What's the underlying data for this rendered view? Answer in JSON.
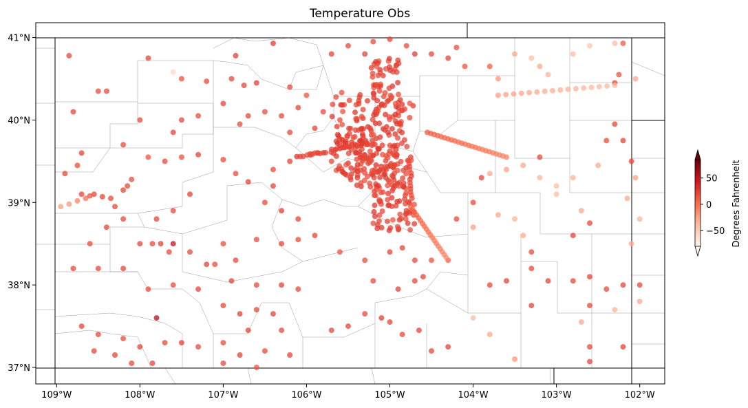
{
  "title": "Temperature Obs",
  "map": {
    "lon_range": [
      -109.25,
      -101.7
    ],
    "lat_range": [
      36.8,
      41.18
    ],
    "x_ticks": [
      {
        "value": -109,
        "label": "109°W"
      },
      {
        "value": -108,
        "label": "108°W"
      },
      {
        "value": -107,
        "label": "107°W"
      },
      {
        "value": -106,
        "label": "106°W"
      },
      {
        "value": -105,
        "label": "105°W"
      },
      {
        "value": -104,
        "label": "104°W"
      },
      {
        "value": -103,
        "label": "103°W"
      },
      {
        "value": -102,
        "label": "102°W"
      }
    ],
    "y_ticks": [
      {
        "value": 37,
        "label": "37°N"
      },
      {
        "value": 38,
        "label": "38°N"
      },
      {
        "value": 39,
        "label": "39°N"
      },
      {
        "value": 40,
        "label": "40°N"
      },
      {
        "value": 41,
        "label": "41°N"
      }
    ],
    "colorbar": {
      "label": "Degrees Fahrenheit",
      "min": -80,
      "max": 85,
      "ticks": [
        {
          "value": 50,
          "label": "50"
        },
        {
          "value": 0,
          "label": "0"
        },
        {
          "value": -50,
          "label": "−50"
        }
      ],
      "colormap": "Reds",
      "extend": "both"
    },
    "point_alpha": 0.75
  },
  "chart_data": {
    "type": "scatter",
    "title": "Temperature Obs",
    "xlabel": "",
    "ylabel": "",
    "color_label": "Degrees Fahrenheit",
    "points_columns": [
      "lon",
      "lat",
      "temp_F"
    ],
    "points": [
      [
        -108.85,
        40.78,
        20
      ],
      [
        -107.9,
        40.75,
        22
      ],
      [
        -107.6,
        40.58,
        -60
      ],
      [
        -107.5,
        40.5,
        15
      ],
      [
        -107.2,
        40.47,
        18
      ],
      [
        -106.85,
        40.78,
        25
      ],
      [
        -106.9,
        40.5,
        20
      ],
      [
        -106.75,
        40.42,
        22
      ],
      [
        -106.6,
        40.45,
        24
      ],
      [
        -106.4,
        40.93,
        25
      ],
      [
        -106.2,
        40.4,
        20
      ],
      [
        -106.0,
        40.3,
        15
      ],
      [
        -105.7,
        40.8,
        22
      ],
      [
        -105.5,
        40.9,
        20
      ],
      [
        -105.3,
        40.8,
        25
      ],
      [
        -105.2,
        40.95,
        20
      ],
      [
        -105.0,
        40.98,
        22
      ],
      [
        -104.8,
        40.9,
        20
      ],
      [
        -104.7,
        40.8,
        25
      ],
      [
        -104.5,
        40.8,
        20
      ],
      [
        -104.3,
        40.75,
        22
      ],
      [
        -104.1,
        40.65,
        15
      ],
      [
        -104.2,
        40.88,
        18
      ],
      [
        -103.8,
        40.65,
        10
      ],
      [
        -103.7,
        40.5,
        -20
      ],
      [
        -103.5,
        40.8,
        -30
      ],
      [
        -103.3,
        40.75,
        -40
      ],
      [
        -103.2,
        40.65,
        -30
      ],
      [
        -103.1,
        40.55,
        -35
      ],
      [
        -102.8,
        40.8,
        -40
      ],
      [
        -102.6,
        40.9,
        -45
      ],
      [
        -102.3,
        40.93,
        -40
      ],
      [
        -102.2,
        40.93,
        10
      ],
      [
        -102.25,
        40.55,
        15
      ],
      [
        -102.3,
        40.45,
        20
      ],
      [
        -102.05,
        40.5,
        -30
      ],
      [
        -108.5,
        40.35,
        18
      ],
      [
        -108.4,
        40.35,
        20
      ],
      [
        -108.8,
        40.1,
        22
      ],
      [
        -108.0,
        40.0,
        18
      ],
      [
        -107.5,
        40.0,
        20
      ],
      [
        -107.3,
        40.05,
        18
      ],
      [
        -107.0,
        40.2,
        22
      ],
      [
        -106.7,
        40.05,
        20
      ],
      [
        -106.5,
        40.1,
        18
      ],
      [
        -106.3,
        40.05,
        20
      ],
      [
        -106.1,
        40.15,
        22
      ],
      [
        -105.8,
        40.1,
        20
      ],
      [
        -105.6,
        40.0,
        18
      ],
      [
        -105.9,
        39.9,
        22
      ],
      [
        -106.2,
        39.85,
        20
      ],
      [
        -106.8,
        39.95,
        18
      ],
      [
        -107.6,
        39.85,
        22
      ],
      [
        -108.2,
        39.7,
        20
      ],
      [
        -108.7,
        39.6,
        22
      ],
      [
        -108.9,
        39.35,
        20
      ],
      [
        -108.75,
        39.45,
        18
      ],
      [
        -107.9,
        39.55,
        15
      ],
      [
        -107.7,
        39.5,
        20
      ],
      [
        -107.5,
        39.55,
        18
      ],
      [
        -107.3,
        39.58,
        22
      ],
      [
        -107.0,
        39.52,
        20
      ],
      [
        -106.85,
        39.35,
        18
      ],
      [
        -106.7,
        39.25,
        22
      ],
      [
        -106.4,
        39.4,
        20
      ],
      [
        -106.2,
        39.5,
        22
      ],
      [
        -105.9,
        39.6,
        18
      ],
      [
        -105.7,
        39.5,
        20
      ],
      [
        -106.4,
        39.2,
        22
      ],
      [
        -106.5,
        39.0,
        20
      ],
      [
        -106.3,
        38.9,
        25
      ],
      [
        -106.1,
        38.8,
        22
      ],
      [
        -106.6,
        38.55,
        20
      ],
      [
        -106.3,
        38.5,
        22
      ],
      [
        -106.1,
        38.55,
        18
      ],
      [
        -105.9,
        38.6,
        20
      ],
      [
        -105.6,
        38.4,
        15
      ],
      [
        -105.3,
        38.3,
        18
      ],
      [
        -105.0,
        38.4,
        20
      ],
      [
        -104.85,
        38.45,
        22
      ],
      [
        -104.7,
        38.3,
        20
      ],
      [
        -104.6,
        38.1,
        22
      ],
      [
        -104.5,
        38.3,
        15
      ],
      [
        -104.3,
        38.3,
        10
      ],
      [
        -107.4,
        39.1,
        22
      ],
      [
        -107.6,
        38.9,
        20
      ],
      [
        -107.8,
        38.8,
        22
      ],
      [
        -108.2,
        38.8,
        20
      ],
      [
        -108.4,
        38.7,
        22
      ],
      [
        -108.6,
        38.5,
        20
      ],
      [
        -108.0,
        38.5,
        22
      ],
      [
        -107.85,
        38.5,
        20
      ],
      [
        -107.6,
        38.5,
        50
      ],
      [
        -107.4,
        38.4,
        20
      ],
      [
        -107.2,
        38.25,
        22
      ],
      [
        -107.0,
        38.5,
        18
      ],
      [
        -106.85,
        38.3,
        20
      ],
      [
        -106.9,
        38.05,
        22
      ],
      [
        -106.6,
        38.0,
        20
      ],
      [
        -106.3,
        38.0,
        22
      ],
      [
        -106.1,
        37.95,
        20
      ],
      [
        -108.8,
        38.2,
        22
      ],
      [
        -108.5,
        38.2,
        20
      ],
      [
        -108.2,
        38.2,
        22
      ],
      [
        -107.9,
        37.95,
        20
      ],
      [
        -107.6,
        38.0,
        18
      ],
      [
        -107.3,
        37.95,
        22
      ],
      [
        -107.0,
        37.75,
        20
      ],
      [
        -106.8,
        37.65,
        22
      ],
      [
        -106.6,
        37.7,
        20
      ],
      [
        -106.4,
        37.65,
        22
      ],
      [
        -106.3,
        37.45,
        20
      ],
      [
        -108.7,
        37.5,
        22
      ],
      [
        -108.5,
        37.4,
        20
      ],
      [
        -108.2,
        37.35,
        18
      ],
      [
        -108.0,
        37.25,
        22
      ],
      [
        -107.8,
        37.6,
        55
      ],
      [
        -107.7,
        37.3,
        20
      ],
      [
        -107.5,
        37.3,
        22
      ],
      [
        -107.3,
        37.25,
        20
      ],
      [
        -107.0,
        37.3,
        18
      ],
      [
        -106.7,
        37.45,
        22
      ],
      [
        -106.5,
        37.2,
        20
      ],
      [
        -106.2,
        37.15,
        22
      ],
      [
        -108.55,
        37.2,
        20
      ],
      [
        -108.3,
        37.15,
        22
      ],
      [
        -108.1,
        37.05,
        20
      ],
      [
        -107.85,
        37.05,
        22
      ],
      [
        -107.0,
        37.05,
        20
      ],
      [
        -106.8,
        37.15,
        22
      ],
      [
        -106.6,
        37.0,
        15
      ],
      [
        -105.7,
        37.45,
        20
      ],
      [
        -105.5,
        37.5,
        22
      ],
      [
        -105.3,
        37.65,
        20
      ],
      [
        -105.0,
        37.55,
        22
      ],
      [
        -104.85,
        37.4,
        20
      ],
      [
        -104.65,
        37.45,
        22
      ],
      [
        -104.5,
        37.2,
        20
      ],
      [
        -104.3,
        37.25,
        22
      ],
      [
        -105.1,
        37.6,
        25
      ],
      [
        -105.2,
        38.05,
        20
      ],
      [
        -104.9,
        37.95,
        22
      ],
      [
        -104.7,
        38.05,
        20
      ],
      [
        -103.8,
        38.0,
        20
      ],
      [
        -103.6,
        38.05,
        22
      ],
      [
        -103.3,
        38.2,
        20
      ],
      [
        -103.1,
        38.05,
        22
      ],
      [
        -102.8,
        38.05,
        20
      ],
      [
        -102.6,
        38.1,
        22
      ],
      [
        -102.4,
        37.95,
        20
      ],
      [
        -102.2,
        38.0,
        22
      ],
      [
        -102.0,
        38.0,
        20
      ],
      [
        -103.3,
        37.75,
        22
      ],
      [
        -102.6,
        37.75,
        20
      ],
      [
        -102.2,
        37.25,
        22
      ],
      [
        -102.6,
        37.25,
        20
      ],
      [
        -102.6,
        37.07,
        22
      ],
      [
        -103.5,
        37.1,
        -20
      ],
      [
        -103.8,
        37.4,
        -30
      ],
      [
        -104.0,
        37.6,
        -40
      ],
      [
        -102.7,
        37.55,
        -30
      ],
      [
        -102.3,
        37.7,
        -35
      ],
      [
        -102.0,
        37.8,
        -30
      ],
      [
        -102.1,
        38.5,
        -30
      ],
      [
        -102.0,
        38.8,
        -35
      ],
      [
        -102.15,
        39.05,
        -30
      ],
      [
        -102.05,
        39.3,
        -25
      ],
      [
        -102.1,
        39.5,
        20
      ],
      [
        -102.2,
        39.75,
        22
      ],
      [
        -102.3,
        39.95,
        20
      ],
      [
        -102.4,
        39.75,
        18
      ],
      [
        -102.5,
        39.45,
        -30
      ],
      [
        -102.8,
        39.3,
        -35
      ],
      [
        -103.0,
        39.1,
        -40
      ],
      [
        -103.2,
        39.3,
        -35
      ],
      [
        -103.4,
        39.45,
        -30
      ],
      [
        -103.6,
        39.4,
        -25
      ],
      [
        -103.8,
        39.35,
        -30
      ],
      [
        -104.0,
        39.0,
        20
      ],
      [
        -103.9,
        39.3,
        22
      ],
      [
        -103.7,
        38.85,
        -30
      ],
      [
        -103.5,
        38.8,
        -35
      ],
      [
        -103.2,
        39.55,
        20
      ],
      [
        -103.0,
        39.2,
        -40
      ],
      [
        -102.7,
        38.9,
        -30
      ],
      [
        -102.6,
        38.75,
        20
      ],
      [
        -102.8,
        38.6,
        22
      ],
      [
        -103.3,
        38.4,
        20
      ],
      [
        -103.4,
        38.6,
        -30
      ],
      [
        -104.0,
        38.7,
        -25
      ],
      [
        -104.2,
        38.8,
        20
      ],
      [
        -108.95,
        38.95,
        -25
      ],
      [
        -108.85,
        38.98,
        -20
      ],
      [
        -108.75,
        39.02,
        -10
      ],
      [
        -108.65,
        39.05,
        0
      ],
      [
        -108.6,
        39.08,
        15
      ],
      [
        -108.55,
        39.1,
        20
      ],
      [
        -108.45,
        39.07,
        22
      ],
      [
        -108.35,
        39.05,
        20
      ],
      [
        -108.2,
        39.15,
        22
      ],
      [
        -108.15,
        39.2,
        20
      ],
      [
        -108.1,
        39.28,
        18
      ],
      [
        -108.7,
        39.1,
        22
      ],
      [
        -108.3,
        38.95,
        20
      ],
      [
        -107.75,
        38.5,
        22
      ],
      [
        -107.65,
        38.4,
        20
      ],
      [
        -107.1,
        38.25,
        18
      ]
    ]
  }
}
